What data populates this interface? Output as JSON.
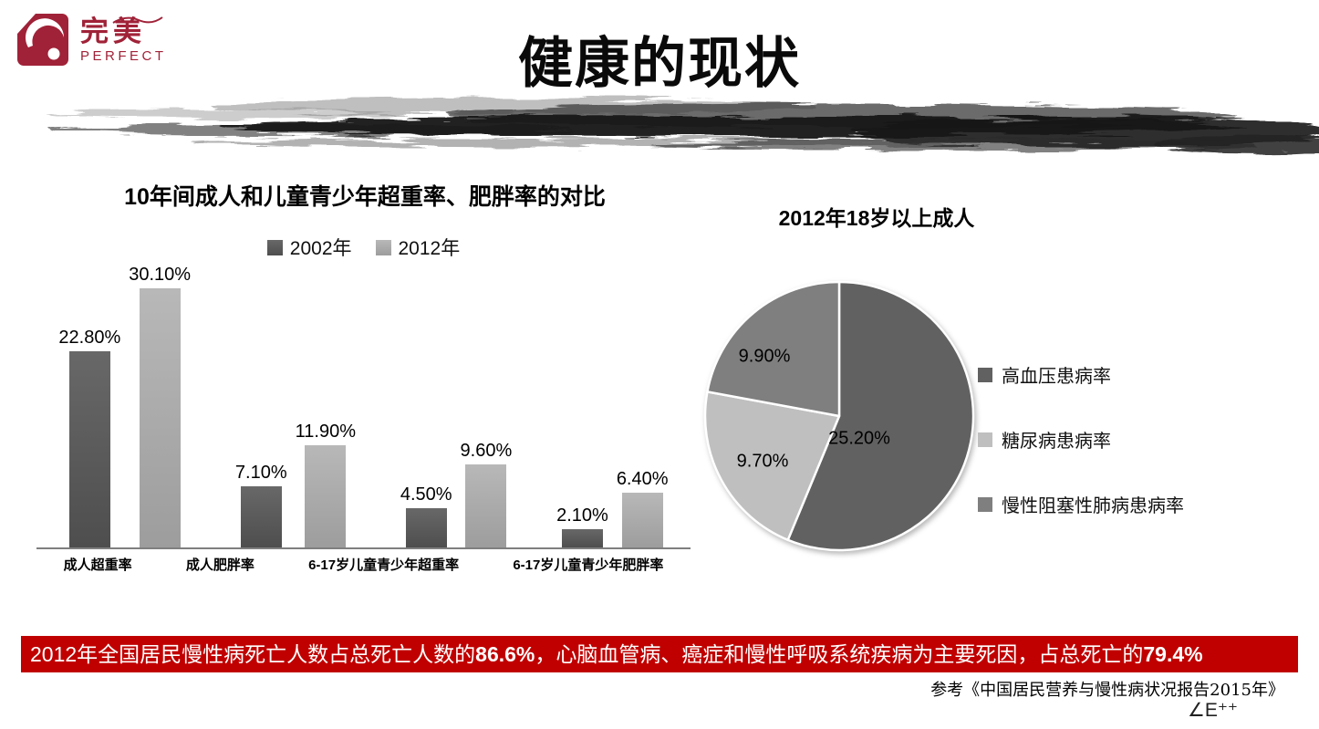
{
  "logo": {
    "brand_cn": "完美",
    "brand_en": "PERFECT",
    "color": "#A02238"
  },
  "title": "健康的现状",
  "chart_data": [
    {
      "type": "bar",
      "title": "10年间成人和儿童青少年超重率、肥胖率的对比",
      "categories": [
        "成人超重率",
        "成人肥胖率",
        "6-17岁儿童青少年超重率",
        "6-17岁儿童青少年肥胖率"
      ],
      "series": [
        {
          "name": "2002年",
          "values": [
            22.8,
            7.1,
            4.5,
            2.1
          ],
          "labels": [
            "22.80%",
            "7.10%",
            "4.50%",
            "2.10%"
          ],
          "gradient": [
            "#686868",
            "#4e4e4e"
          ]
        },
        {
          "name": "2012年",
          "values": [
            30.1,
            11.9,
            9.6,
            6.4
          ],
          "labels": [
            "30.10%",
            "11.90%",
            "9.60%",
            "6.40%"
          ],
          "gradient": [
            "#b8b8b8",
            "#9d9d9d"
          ]
        }
      ],
      "unit": "%",
      "ylim": [
        0,
        32
      ],
      "grid": false,
      "legend_position": "top",
      "axis_color": "#7f7f7f"
    },
    {
      "type": "pie",
      "title": "2012年18岁以上成人",
      "slices": [
        {
          "label": "高血压患病率",
          "value": 25.2,
          "display": "25.20%",
          "color": "#616161"
        },
        {
          "label": "糖尿病患病率",
          "value": 9.7,
          "display": "9.70%",
          "color": "#BFBFBF"
        },
        {
          "label": "慢性阻塞性肺病患病率",
          "value": 9.9,
          "display": "9.90%",
          "color": "#7F7F7F"
        }
      ],
      "start_angle_deg": 0,
      "direction": "clockwise",
      "legend_position": "right",
      "slice_border_color": "#ffffff"
    }
  ],
  "banner": {
    "background": "#C00000",
    "part1": "2012年全国居民慢性病死亡人数占总死亡人数的",
    "num1": "86.6%",
    "part2": "，心脑血管病、癌症和慢性呼吸系统疾病为主要死因，占总死亡的",
    "num2": "79.4%"
  },
  "reference": "参考《中国居民营养与慢性病状况报告2015年》",
  "watermark_fragment": "∠E⁺⁺"
}
